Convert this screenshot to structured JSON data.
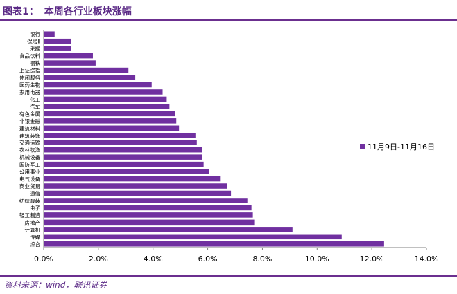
{
  "figure": {
    "label": "图表1：",
    "title": "本周各行业板块涨幅",
    "source": "资料来源：wind，联讯证券"
  },
  "colors": {
    "bar": "#7030a0",
    "accent": "#5b2a86",
    "axis": "#808080",
    "text": "#000000"
  },
  "chart_data": {
    "type": "bar",
    "orientation": "horizontal",
    "categories": [
      "银行",
      "保险Ⅱ",
      "采掘",
      "食品饮料",
      "钢铁",
      "上证综指",
      "休闲服务",
      "医药生物",
      "家用电器",
      "化工",
      "汽车",
      "有色金属",
      "非银金融",
      "建筑材料",
      "建筑装饰",
      "交通运输",
      "农林牧渔",
      "机械设备",
      "国防军工",
      "公用事业",
      "电气设备",
      "商业贸易",
      "通信",
      "纺织服装",
      "电子",
      "轻工制造",
      "房地产",
      "计算机",
      "传媒",
      "综合"
    ],
    "series": [
      {
        "name": "11月9日-11月16日",
        "values": [
          0.4,
          1.0,
          1.0,
          1.8,
          1.9,
          3.1,
          3.35,
          3.95,
          4.35,
          4.5,
          4.6,
          4.8,
          4.85,
          4.95,
          5.55,
          5.6,
          5.8,
          5.8,
          5.85,
          6.05,
          6.45,
          6.7,
          6.85,
          7.45,
          7.6,
          7.65,
          7.7,
          9.1,
          10.9,
          12.45
        ]
      }
    ],
    "xlim": [
      0,
      14
    ],
    "xticks": [
      "0.0%",
      "2.0%",
      "4.0%",
      "6.0%",
      "8.0%",
      "10.0%",
      "12.0%",
      "14.0%"
    ],
    "legend_position": "right",
    "grid": false
  }
}
